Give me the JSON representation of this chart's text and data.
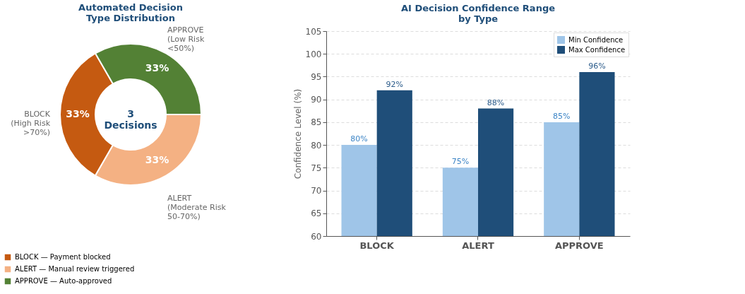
{
  "chart_data": [
    {
      "type": "donut",
      "title": "Automated Decision\nType Distribution",
      "categories": [
        "BLOCK — Payment blocked",
        "ALERT — Manual review triggered",
        "APPROVE — Auto-approved"
      ],
      "values": [
        33,
        33,
        33
      ],
      "colors": [
        "#c55a11",
        "#f4b183",
        "#538135"
      ],
      "value_labels": [
        "33%",
        "33%",
        "33%"
      ],
      "annotations": [
        "BLOCK\n(High Risk\n>70%)",
        "ALERT\n(Moderate Risk\n50-70%)",
        "APPROVE\n(Low Risk\n<50%)",
        "3\nDecisions"
      ],
      "legend": "bottom"
    },
    {
      "type": "bar",
      "title": "AI Decision Confidence Range\nby Type",
      "ylabel": "Confidence Level (%)",
      "categories": [
        "BLOCK",
        "ALERT",
        "APPROVE"
      ],
      "series": [
        {
          "name": "Min Confidence",
          "color": "#9fc5e8",
          "values": [
            80,
            75,
            85
          ],
          "value_labels": [
            "80%",
            "75%",
            "85%"
          ]
        },
        {
          "name": "Max Confidence",
          "color": "#1f4e79",
          "values": [
            92,
            88,
            96
          ],
          "value_labels": [
            "92%",
            "88%",
            "96%"
          ]
        }
      ],
      "ylim": [
        60,
        105
      ],
      "yticks": [
        60,
        65,
        70,
        75,
        80,
        85,
        90,
        95,
        100,
        105
      ],
      "grid": "y",
      "legend": "top right"
    }
  ]
}
